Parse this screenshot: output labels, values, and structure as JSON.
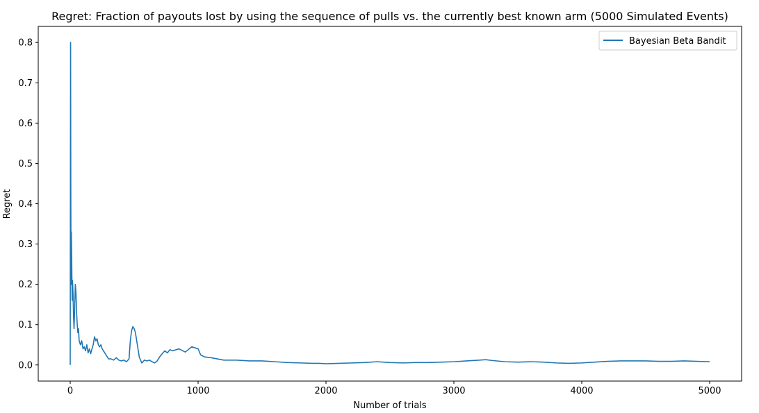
{
  "chart_data": {
    "type": "line",
    "title": "Regret: Fraction of payouts lost by using the sequence of pulls vs. the currently best known arm (5000 Simulated Events)",
    "xlabel": "Number of trials",
    "ylabel": "Regret",
    "xlim": [
      -250,
      5250
    ],
    "ylim": [
      -0.04,
      0.84
    ],
    "xticks": [
      0,
      1000,
      2000,
      3000,
      4000,
      5000
    ],
    "xtick_labels": [
      "0",
      "1000",
      "2000",
      "3000",
      "4000",
      "5000"
    ],
    "yticks": [
      0.0,
      0.1,
      0.2,
      0.3,
      0.4,
      0.5,
      0.6,
      0.7,
      0.8
    ],
    "ytick_labels": [
      "0.0",
      "0.1",
      "0.2",
      "0.3",
      "0.4",
      "0.5",
      "0.6",
      "0.7",
      "0.8"
    ],
    "grid": false,
    "legend_position": "top-right",
    "series": [
      {
        "name": "Bayesian Beta Bandit",
        "color": "#1f77b4",
        "x": [
          0,
          3,
          5,
          7,
          9,
          12,
          15,
          18,
          22,
          26,
          30,
          35,
          40,
          45,
          50,
          55,
          60,
          65,
          70,
          80,
          90,
          100,
          110,
          120,
          130,
          140,
          150,
          160,
          170,
          180,
          190,
          200,
          210,
          220,
          230,
          240,
          250,
          260,
          270,
          280,
          300,
          320,
          340,
          360,
          380,
          400,
          420,
          440,
          460,
          470,
          480,
          490,
          500,
          510,
          520,
          530,
          540,
          550,
          560,
          570,
          580,
          600,
          620,
          640,
          660,
          680,
          700,
          720,
          740,
          760,
          780,
          800,
          850,
          900,
          950,
          1000,
          1020,
          1050,
          1100,
          1150,
          1200,
          1300,
          1400,
          1500,
          1600,
          1700,
          1800,
          1900,
          1950,
          2000,
          2100,
          2200,
          2300,
          2400,
          2500,
          2600,
          2700,
          2800,
          2900,
          3000,
          3100,
          3200,
          3250,
          3300,
          3400,
          3500,
          3600,
          3700,
          3800,
          3900,
          4000,
          4100,
          4200,
          4300,
          4400,
          4500,
          4600,
          4700,
          4800,
          4900,
          5000
        ],
        "y": [
          0.0,
          0.8,
          0.4,
          0.2,
          0.33,
          0.26,
          0.16,
          0.21,
          0.18,
          0.12,
          0.09,
          0.14,
          0.2,
          0.18,
          0.13,
          0.1,
          0.08,
          0.09,
          0.06,
          0.05,
          0.06,
          0.04,
          0.045,
          0.035,
          0.05,
          0.03,
          0.04,
          0.028,
          0.04,
          0.05,
          0.07,
          0.06,
          0.065,
          0.05,
          0.045,
          0.05,
          0.04,
          0.035,
          0.03,
          0.025,
          0.015,
          0.015,
          0.012,
          0.018,
          0.012,
          0.01,
          0.012,
          0.008,
          0.015,
          0.06,
          0.085,
          0.095,
          0.09,
          0.08,
          0.06,
          0.04,
          0.02,
          0.012,
          0.005,
          0.008,
          0.012,
          0.01,
          0.012,
          0.008,
          0.005,
          0.01,
          0.02,
          0.028,
          0.035,
          0.03,
          0.038,
          0.035,
          0.04,
          0.032,
          0.045,
          0.04,
          0.025,
          0.02,
          0.018,
          0.015,
          0.012,
          0.012,
          0.01,
          0.01,
          0.008,
          0.006,
          0.005,
          0.004,
          0.004,
          0.003,
          0.004,
          0.005,
          0.006,
          0.008,
          0.006,
          0.005,
          0.006,
          0.006,
          0.007,
          0.008,
          0.01,
          0.012,
          0.013,
          0.011,
          0.008,
          0.007,
          0.008,
          0.007,
          0.005,
          0.004,
          0.005,
          0.007,
          0.009,
          0.01,
          0.01,
          0.01,
          0.009,
          0.009,
          0.01,
          0.009,
          0.008
        ]
      }
    ]
  }
}
